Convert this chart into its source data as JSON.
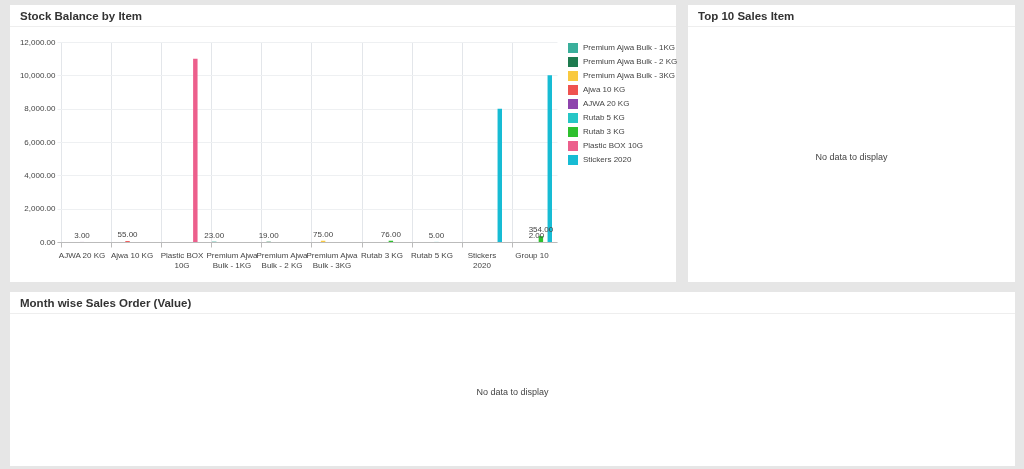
{
  "chart_data": [
    {
      "type": "bar",
      "title": "Stock Balance by Item",
      "categories": [
        "AJWA 20 KG",
        "Ajwa 10 KG",
        "Plastic BOX 10G",
        "Premium Ajwa Bulk - 1KG",
        "Premium Ajwa Bulk - 2 KG",
        "Premium Ajwa Bulk - 3KG",
        "Rutab 3 KG",
        "Rutab 5 KG",
        "Stickers 2020",
        "Group 10"
      ],
      "series": [
        {
          "name": "Premium Ajwa Bulk - 1KG",
          "color": "#3aaf9b",
          "values": [
            null,
            null,
            null,
            23,
            null,
            null,
            null,
            null,
            null,
            null
          ],
          "value_labels": [
            null,
            null,
            null,
            "23.00",
            null,
            null,
            null,
            null,
            null,
            null
          ]
        },
        {
          "name": "Premium Ajwa Bulk - 2 KG",
          "color": "#1e7b4f",
          "values": [
            null,
            null,
            null,
            null,
            19,
            null,
            null,
            null,
            null,
            null
          ],
          "value_labels": [
            null,
            null,
            null,
            null,
            "19.00",
            null,
            null,
            null,
            null,
            null
          ]
        },
        {
          "name": "Premium Ajwa Bulk - 3KG",
          "color": "#f9c940",
          "values": [
            null,
            null,
            null,
            null,
            null,
            75,
            null,
            null,
            null,
            null
          ],
          "value_labels": [
            null,
            null,
            null,
            null,
            null,
            "75.00",
            null,
            null,
            null,
            null
          ]
        },
        {
          "name": "Ajwa 10 KG",
          "color": "#ef5350",
          "values": [
            null,
            55,
            null,
            null,
            null,
            null,
            null,
            null,
            null,
            null
          ],
          "value_labels": [
            null,
            "55.00",
            null,
            null,
            null,
            null,
            null,
            null,
            null,
            null
          ]
        },
        {
          "name": "AJWA 20 KG",
          "color": "#8e44ad",
          "values": [
            3,
            null,
            null,
            null,
            null,
            null,
            null,
            null,
            null,
            null
          ],
          "value_labels": [
            "3.00",
            null,
            null,
            null,
            null,
            null,
            null,
            null,
            null,
            null
          ]
        },
        {
          "name": "Rutab 5 KG",
          "color": "#26c6c6",
          "values": [
            null,
            null,
            null,
            null,
            null,
            null,
            null,
            5,
            null,
            2
          ],
          "value_labels": [
            null,
            null,
            null,
            null,
            null,
            null,
            null,
            "5.00",
            null,
            "2.00"
          ]
        },
        {
          "name": "Rutab 3 KG",
          "color": "#2ec02e",
          "values": [
            null,
            null,
            null,
            null,
            null,
            null,
            76,
            null,
            null,
            354
          ],
          "value_labels": [
            null,
            null,
            null,
            null,
            null,
            null,
            "76.00",
            null,
            null,
            "354.00"
          ]
        },
        {
          "name": "Plastic BOX 10G",
          "color": "#ec5f8c",
          "values": [
            null,
            null,
            11000,
            null,
            null,
            null,
            null,
            null,
            null,
            null
          ]
        },
        {
          "name": "Stickers 2020",
          "color": "#17bcd4",
          "values": [
            null,
            null,
            null,
            null,
            null,
            null,
            null,
            null,
            8000,
            10000
          ]
        }
      ],
      "ylim": [
        0,
        12000
      ],
      "yticks": [
        {
          "value": 0,
          "label": "0.00"
        },
        {
          "value": 2000,
          "label": "2,000.00"
        },
        {
          "value": 4000,
          "label": "4,000.00"
        },
        {
          "value": 6000,
          "label": "6,000.00"
        },
        {
          "value": 8000,
          "label": "8,000.00"
        },
        {
          "value": 10000,
          "label": "10,000.00"
        },
        {
          "value": 12000,
          "label": "12,000.00"
        }
      ],
      "grid": true,
      "legend": "right"
    },
    {
      "type": "other",
      "title": "Top 10 Sales Item",
      "annotations": [
        "No data to display"
      ]
    },
    {
      "type": "other",
      "title": "Month wise Sales Order (Value)",
      "annotations": [
        "No data to display"
      ]
    }
  ]
}
